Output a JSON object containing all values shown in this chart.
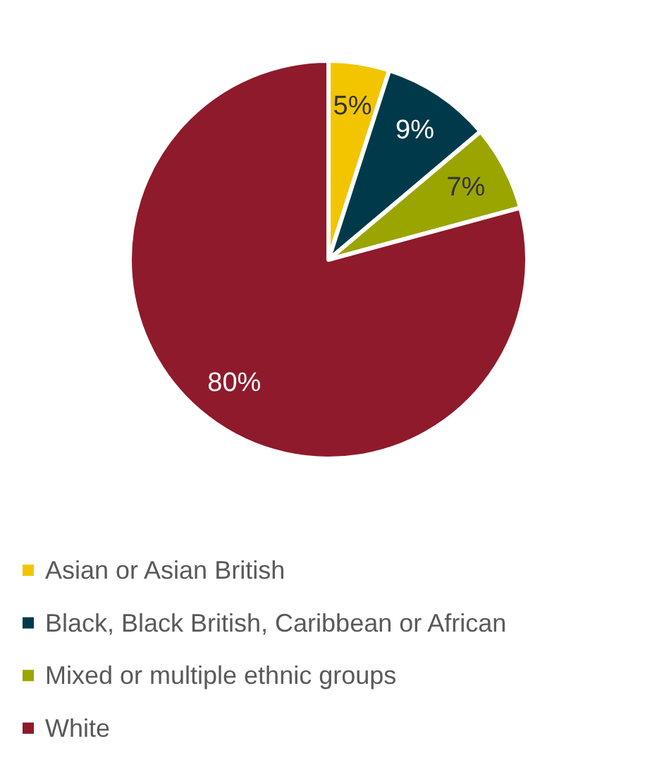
{
  "chart_data": {
    "type": "pie",
    "categories": [
      "Asian or Asian British",
      "Black, Black British, Caribbean or African",
      "Mixed or multiple ethnic groups",
      "White"
    ],
    "values": [
      5,
      9,
      7,
      80
    ],
    "colors": [
      "#f2c500",
      "#003a4a",
      "#9aa500",
      "#8f1a2b"
    ],
    "value_labels": [
      "5%",
      "9%",
      "7%",
      "80%"
    ],
    "legend": "bottom"
  }
}
